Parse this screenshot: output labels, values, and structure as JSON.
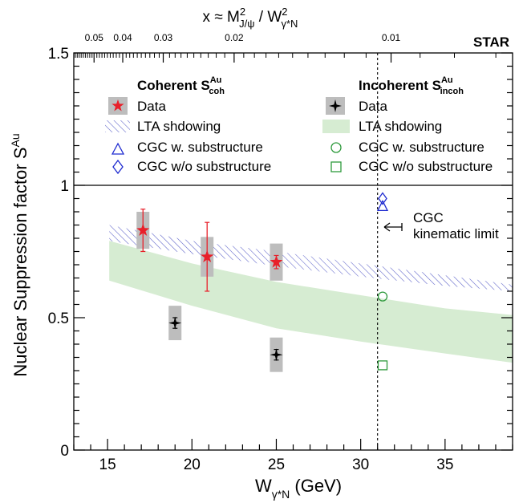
{
  "chart_data": {
    "type": "scatter",
    "experiment_label": "STAR",
    "xlabel": {
      "main": "W",
      "sub": "γ*N",
      "unit": " (GeV)"
    },
    "ylabel": {
      "main": "Nuclear Suppression factor S",
      "sup": "Au"
    },
    "top_axis_label": {
      "prefix": "x ≈ M",
      "sup1": "2",
      "sub1": "J/ψ",
      "mid": " / W",
      "sup2": "2",
      "sub2": "γ*N"
    },
    "xlim": [
      13,
      39
    ],
    "ylim": [
      0,
      1.5
    ],
    "x_ticks": [
      15,
      20,
      25,
      30,
      35
    ],
    "x_tick_labels": [
      "15",
      "20",
      "25",
      "30",
      "35"
    ],
    "y_ticks": [
      0,
      0.5,
      1,
      1.5
    ],
    "y_tick_labels": [
      "0",
      "0.5",
      "1",
      "1.5"
    ],
    "top_ticks": [
      {
        "label": "0.05",
        "w": 14.2
      },
      {
        "label": "0.04",
        "w": 15.9
      },
      {
        "label": "0.03",
        "w": 18.3
      },
      {
        "label": "0.02",
        "w": 22.5
      },
      {
        "label": "0.01",
        "w": 31.8
      }
    ],
    "reference_line_y": 1.0,
    "kinematic_limit_x": 31.0,
    "annotation": {
      "line1": "CGC",
      "line2": "kinematic limit"
    },
    "legend": {
      "coherent_title": {
        "main": "Coherent S",
        "sup": "Au",
        "sub": "coh"
      },
      "incoherent_title": {
        "main": "Incoherent S",
        "sup": "Au",
        "sub": "incoh"
      },
      "coherent_items": [
        "Data",
        "LTA shdowing",
        "CGC w. substructure",
        "CGC w/o substructure"
      ],
      "incoherent_items": [
        "Data",
        "LTA shdowing",
        "CGC w. substructure",
        "CGC w/o substructure"
      ]
    },
    "series": [
      {
        "name": "Coherent Data",
        "marker": "star",
        "color": "#e8202a",
        "points": [
          {
            "x": 17.1,
            "y": 0.83,
            "err_low": 0.08,
            "err_high": 0.08,
            "sys": 0.07
          },
          {
            "x": 20.9,
            "y": 0.73,
            "err_low": 0.13,
            "err_high": 0.13,
            "sys": 0.075
          },
          {
            "x": 25.0,
            "y": 0.71,
            "err_low": 0.025,
            "err_high": 0.025,
            "sys": 0.07
          }
        ]
      },
      {
        "name": "Incoherent Data",
        "marker": "diamond-star",
        "color": "#000000",
        "points": [
          {
            "x": 19.0,
            "y": 0.48,
            "err_low": 0.02,
            "err_high": 0.02,
            "sys": 0.065
          },
          {
            "x": 25.0,
            "y": 0.36,
            "err_low": 0.02,
            "err_high": 0.02,
            "sys": 0.065
          }
        ]
      },
      {
        "name": "Coherent LTA shdowing",
        "type": "band",
        "color": "#5b60c8",
        "x": [
          15.1,
          20,
          25,
          30,
          35,
          39
        ],
        "y_low": [
          0.79,
          0.74,
          0.695,
          0.655,
          0.62,
          0.6
        ],
        "y_high": [
          0.85,
          0.79,
          0.75,
          0.705,
          0.66,
          0.625
        ]
      },
      {
        "name": "Incoherent LTA shdowing",
        "type": "band",
        "color": "#d6ecd2",
        "x": [
          15.1,
          20,
          25,
          30,
          35,
          39
        ],
        "y_low": [
          0.64,
          0.545,
          0.46,
          0.41,
          0.365,
          0.33
        ],
        "y_high": [
          0.79,
          0.705,
          0.635,
          0.585,
          0.535,
          0.51
        ]
      },
      {
        "name": "Coherent CGC w. substructure",
        "marker": "triangle",
        "color": "#1f2bd0",
        "points": [
          {
            "x": 31.3,
            "y": 0.92
          }
        ]
      },
      {
        "name": "Coherent CGC w/o substructure",
        "marker": "diamond",
        "color": "#1f2bd0",
        "points": [
          {
            "x": 31.3,
            "y": 0.95
          }
        ]
      },
      {
        "name": "Incoherent CGC w. substructure",
        "marker": "circle",
        "color": "#2e9a3c",
        "points": [
          {
            "x": 31.3,
            "y": 0.58
          }
        ]
      },
      {
        "name": "Incoherent CGC w/o substructure",
        "marker": "square",
        "color": "#2e9a3c",
        "points": [
          {
            "x": 31.3,
            "y": 0.32
          }
        ]
      }
    ]
  }
}
